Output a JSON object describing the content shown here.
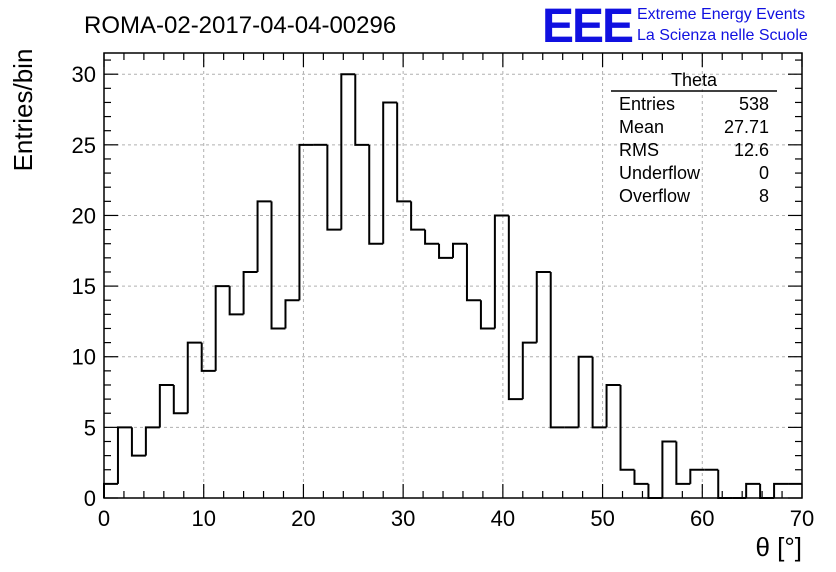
{
  "header": {
    "title": "ROMA-02-2017-04-04-00296",
    "logo_text": "EEE",
    "logo_line1": "Extreme Energy Events",
    "logo_line2": "La Scienza nelle Scuole"
  },
  "stats_box": {
    "title": "Theta",
    "rows": [
      {
        "label": "Entries",
        "value": "538"
      },
      {
        "label": "Mean",
        "value": "27.71"
      },
      {
        "label": "RMS",
        "value": "12.6"
      },
      {
        "label": "Underflow",
        "value": "0"
      },
      {
        "label": "Overflow",
        "value": "8"
      }
    ]
  },
  "chart_data": {
    "type": "bar",
    "style": "step-histogram",
    "title": "ROMA-02-2017-04-04-00296",
    "xlabel": "θ [°]",
    "ylabel": "Entries/bin",
    "xlim": [
      0,
      70
    ],
    "ylim": [
      0,
      31.5
    ],
    "bin_width": 1.4,
    "xticks": [
      0,
      10,
      20,
      30,
      40,
      50,
      60,
      70
    ],
    "yticks": [
      0,
      5,
      10,
      15,
      20,
      25,
      30
    ],
    "grid": true,
    "values": [
      1,
      5,
      3,
      5,
      8,
      6,
      11,
      9,
      15,
      13,
      16,
      21,
      12,
      14,
      25,
      25,
      19,
      30,
      25,
      18,
      28,
      21,
      19,
      18,
      17,
      18,
      14,
      12,
      20,
      7,
      11,
      16,
      5,
      5,
      10,
      5,
      8,
      2,
      1,
      0,
      4,
      1,
      2,
      2,
      0,
      0,
      1,
      0,
      1,
      1
    ],
    "colors": {
      "line": "#000000",
      "grid": "#b0b0b0",
      "logo": "#1010e0"
    }
  }
}
